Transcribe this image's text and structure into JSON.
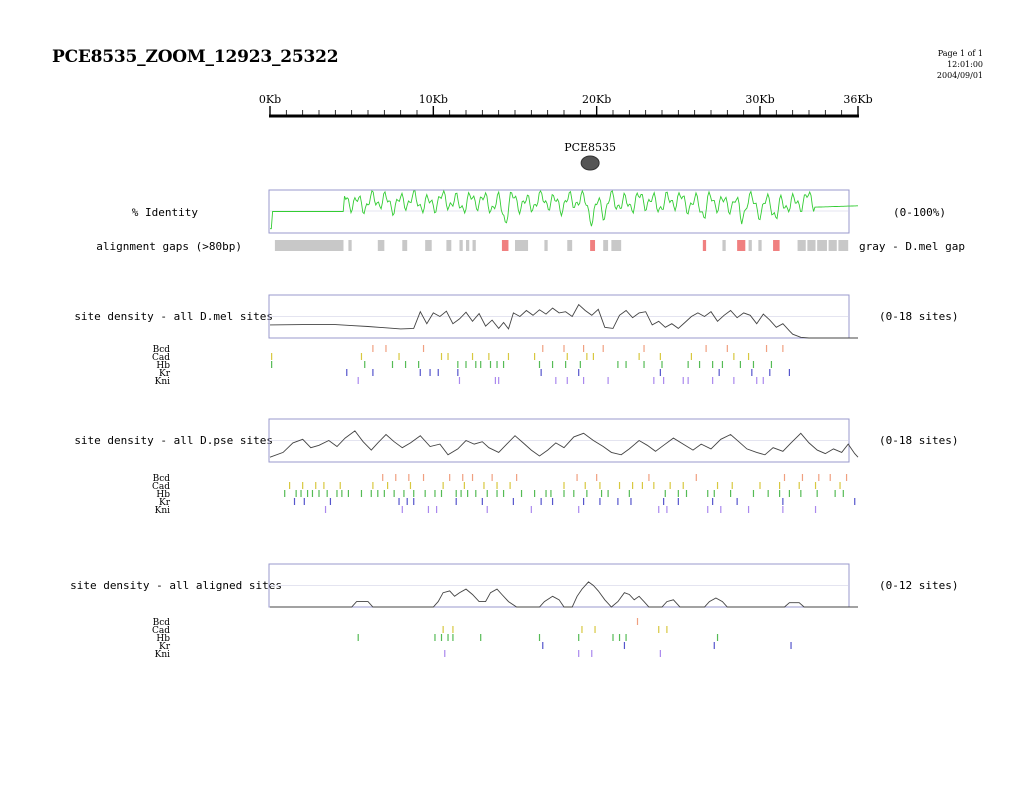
{
  "page": {
    "title": "PCE8535_ZOOM_12923_25322",
    "page_label": "Page 1 of 1",
    "time": "12:01:00",
    "date": "2004/09/01"
  },
  "ruler": {
    "labels": [
      "0Kb",
      "10Kb",
      "20Kb",
      "30Kb",
      "36Kb"
    ],
    "positions_kb": [
      0,
      10,
      20,
      30,
      36
    ],
    "minor_tick_kb": 1,
    "max_kb": 36
  },
  "element": {
    "label": "PCE8535",
    "position_kb": 19.6,
    "color": "#555555"
  },
  "identity": {
    "label": "% Identity",
    "range_label": "(0-100%)",
    "line_color": "#33cc33"
  },
  "gaps": {
    "label": "alignment gaps (>80bp)",
    "note": "gray - D.mel gap",
    "colors": {
      "dmel": "#c8c8c8",
      "dpse": "#f08080"
    },
    "segments": [
      {
        "start": 0.3,
        "end": 4.5,
        "type": "dmel"
      },
      {
        "start": 4.8,
        "end": 5.0,
        "type": "dmel"
      },
      {
        "start": 6.6,
        "end": 7.0,
        "type": "dmel"
      },
      {
        "start": 8.1,
        "end": 8.4,
        "type": "dmel"
      },
      {
        "start": 9.5,
        "end": 9.9,
        "type": "dmel"
      },
      {
        "start": 10.8,
        "end": 11.1,
        "type": "dmel"
      },
      {
        "start": 11.6,
        "end": 11.8,
        "type": "dmel"
      },
      {
        "start": 12.0,
        "end": 12.2,
        "type": "dmel"
      },
      {
        "start": 12.4,
        "end": 12.6,
        "type": "dmel"
      },
      {
        "start": 14.2,
        "end": 14.6,
        "type": "dpse"
      },
      {
        "start": 15.0,
        "end": 15.8,
        "type": "dmel"
      },
      {
        "start": 16.8,
        "end": 17.0,
        "type": "dmel"
      },
      {
        "start": 18.2,
        "end": 18.5,
        "type": "dmel"
      },
      {
        "start": 19.6,
        "end": 19.9,
        "type": "dpse"
      },
      {
        "start": 20.4,
        "end": 20.7,
        "type": "dmel"
      },
      {
        "start": 20.9,
        "end": 21.5,
        "type": "dmel"
      },
      {
        "start": 26.5,
        "end": 26.7,
        "type": "dpse"
      },
      {
        "start": 27.7,
        "end": 27.9,
        "type": "dmel"
      },
      {
        "start": 28.6,
        "end": 29.1,
        "type": "dpse"
      },
      {
        "start": 29.3,
        "end": 29.5,
        "type": "dmel"
      },
      {
        "start": 29.9,
        "end": 30.1,
        "type": "dmel"
      },
      {
        "start": 30.8,
        "end": 31.2,
        "type": "dpse"
      },
      {
        "start": 32.3,
        "end": 32.8,
        "type": "dmel"
      },
      {
        "start": 32.9,
        "end": 33.4,
        "type": "dmel"
      },
      {
        "start": 33.5,
        "end": 34.1,
        "type": "dmel"
      },
      {
        "start": 34.2,
        "end": 34.7,
        "type": "dmel"
      },
      {
        "start": 34.8,
        "end": 35.4,
        "type": "dmel"
      }
    ]
  },
  "factors": {
    "names": [
      "Bcd",
      "Cad",
      "Hb",
      "Kr",
      "Kni"
    ],
    "colors": [
      "#f0a080",
      "#d8c840",
      "#55bb55",
      "#5555cc",
      "#aa88ee"
    ]
  },
  "panels": [
    {
      "label": "site density - all D.mel sites",
      "range_label": "(0-18 sites)",
      "max_sites": 18,
      "line_color": "#444444",
      "density": [
        [
          0,
          5.5
        ],
        [
          2,
          5.6
        ],
        [
          4,
          5.6
        ],
        [
          5,
          5.2
        ],
        [
          6,
          4.8
        ],
        [
          7,
          4.3
        ],
        [
          8,
          3.8
        ],
        [
          9,
          3.6
        ],
        [
          10,
          3.3
        ],
        [
          11,
          3.5
        ],
        [
          12,
          3.0
        ],
        [
          13,
          2.6
        ],
        [
          14,
          3.0
        ],
        [
          15,
          3.8
        ],
        [
          16,
          3.4
        ],
        [
          17,
          2.8
        ],
        [
          18,
          3.0
        ],
        [
          18.6,
          3.8
        ],
        [
          19.2,
          7.5
        ],
        [
          19.8,
          9.0
        ],
        [
          20.3,
          5.0
        ],
        [
          20.8,
          3.2
        ],
        [
          21.3,
          2.2
        ],
        [
          21.8,
          3.0
        ],
        [
          22.5,
          3.6
        ],
        [
          23.5,
          3.2
        ],
        [
          24.5,
          2.4
        ],
        [
          25.5,
          1.8
        ],
        [
          26.5,
          2.6
        ],
        [
          27.0,
          4.2
        ],
        [
          27.6,
          6.0
        ],
        [
          28.2,
          4.8
        ],
        [
          28.8,
          3.8
        ],
        [
          29.5,
          5.6
        ],
        [
          30.0,
          4.6
        ],
        [
          30.6,
          4.2
        ],
        [
          31.3,
          3.2
        ],
        [
          32,
          1.6
        ],
        [
          32.5,
          0.3
        ],
        [
          33,
          0
        ],
        [
          34,
          0
        ],
        [
          35,
          0
        ],
        [
          36,
          0
        ]
      ],
      "density_detail": [
        [
          8.8,
          4.0
        ],
        [
          9.2,
          11.0
        ],
        [
          9.6,
          6.0
        ],
        [
          10.0,
          10.5
        ],
        [
          10.4,
          9.0
        ],
        [
          10.8,
          11.2
        ],
        [
          11.2,
          6.0
        ],
        [
          11.6,
          8.0
        ],
        [
          12.0,
          10.8
        ],
        [
          12.4,
          7.0
        ],
        [
          12.8,
          10.2
        ],
        [
          13.2,
          5.0
        ],
        [
          13.6,
          7.5
        ],
        [
          14.0,
          4.0
        ],
        [
          14.3,
          6.5
        ],
        [
          14.6,
          3.8
        ],
        [
          14.9,
          10.5
        ],
        [
          15.3,
          9.0
        ],
        [
          15.7,
          11.5
        ],
        [
          16.1,
          9.5
        ],
        [
          16.5,
          11.8
        ],
        [
          16.9,
          10.0
        ],
        [
          17.3,
          12.5
        ],
        [
          17.7,
          10.5
        ],
        [
          18.1,
          11.0
        ],
        [
          18.5,
          9.0
        ],
        [
          18.9,
          14.0
        ],
        [
          19.3,
          11.5
        ],
        [
          19.7,
          9.5
        ],
        [
          20.1,
          12.0
        ],
        [
          20.5,
          4.5
        ],
        [
          21.0,
          4.0
        ],
        [
          21.4,
          9.5
        ],
        [
          21.8,
          11.5
        ],
        [
          22.2,
          8.5
        ],
        [
          22.6,
          10.5
        ],
        [
          23.0,
          11.0
        ],
        [
          23.4,
          5.5
        ],
        [
          23.8,
          7.0
        ],
        [
          24.2,
          4.5
        ],
        [
          24.6,
          6.0
        ],
        [
          25.0,
          4.0
        ],
        [
          25.4,
          6.5
        ],
        [
          25.8,
          9.0
        ],
        [
          26.2,
          10.5
        ],
        [
          26.6,
          9.0
        ],
        [
          27.0,
          11.0
        ],
        [
          27.4,
          7.0
        ],
        [
          27.8,
          9.5
        ],
        [
          28.2,
          11.5
        ],
        [
          28.6,
          8.5
        ],
        [
          29.0,
          10.5
        ],
        [
          29.4,
          9.5
        ],
        [
          29.8,
          6.0
        ],
        [
          30.2,
          10.0
        ],
        [
          30.6,
          7.5
        ],
        [
          31.0,
          4.5
        ],
        [
          31.4,
          6.0
        ],
        [
          31.8,
          3.0
        ]
      ],
      "tracks": [
        [
          6.3,
          7.1,
          9.4,
          16.7,
          18.0,
          19.2,
          20.4,
          22.9,
          26.7,
          28.0,
          30.4,
          31.4
        ],
        [
          0.1,
          5.6,
          7.9,
          10.5,
          10.9,
          12.4,
          13.4,
          14.6,
          16.2,
          18.2,
          19.4,
          19.8,
          22.6,
          23.9,
          25.8,
          28.4,
          29.3
        ],
        [
          0.1,
          5.8,
          7.5,
          8.3,
          9.1,
          11.5,
          12.0,
          12.6,
          12.9,
          13.5,
          13.9,
          14.3,
          16.5,
          17.3,
          18.1,
          19.0,
          21.3,
          21.8,
          22.9,
          24.0,
          25.6,
          26.3,
          27.1,
          27.7,
          28.8,
          29.6,
          30.7
        ],
        [
          4.7,
          6.3,
          9.2,
          9.8,
          10.3,
          11.5,
          16.6,
          18.9,
          23.9,
          27.5,
          29.5,
          30.6,
          31.8
        ],
        [
          5.4,
          11.6,
          13.8,
          14.0,
          17.5,
          18.2,
          19.2,
          20.7,
          23.5,
          24.1,
          25.3,
          25.6,
          27.1,
          28.4,
          29.8,
          30.2
        ]
      ]
    },
    {
      "label": "site density - all D.pse sites",
      "range_label": "(0-18 sites)",
      "max_sites": 18,
      "line_color": "#444444",
      "density": [
        [
          0,
          2.0
        ],
        [
          0.8,
          4.0
        ],
        [
          1.4,
          8.0
        ],
        [
          2.0,
          9.5
        ],
        [
          2.5,
          6.0
        ],
        [
          3.0,
          7.0
        ],
        [
          3.6,
          9.0
        ],
        [
          4.1,
          6.5
        ],
        [
          4.6,
          10.0
        ],
        [
          5.2,
          13.0
        ],
        [
          5.7,
          8.5
        ],
        [
          6.2,
          5.0
        ],
        [
          6.6,
          8.0
        ],
        [
          7.1,
          11.5
        ],
        [
          7.6,
          8.5
        ],
        [
          8.1,
          6.0
        ],
        [
          8.6,
          8.0
        ],
        [
          9.2,
          11.0
        ],
        [
          9.8,
          6.5
        ],
        [
          10.4,
          7.5
        ],
        [
          10.9,
          3.0
        ],
        [
          11.5,
          5.5
        ],
        [
          12.0,
          9.0
        ],
        [
          12.5,
          7.5
        ],
        [
          13.0,
          8.5
        ],
        [
          13.4,
          6.0
        ],
        [
          14.0,
          4.0
        ],
        [
          14.5,
          7.5
        ],
        [
          15.0,
          11.0
        ],
        [
          15.5,
          8.0
        ],
        [
          16.0,
          5.0
        ],
        [
          16.5,
          2.5
        ],
        [
          17.0,
          5.0
        ],
        [
          17.5,
          8.0
        ],
        [
          18.0,
          6.0
        ],
        [
          18.6,
          10.5
        ],
        [
          19.2,
          12.0
        ],
        [
          19.8,
          9.0
        ],
        [
          20.4,
          6.5
        ],
        [
          20.9,
          4.0
        ],
        [
          21.5,
          3.0
        ],
        [
          22.0,
          5.5
        ],
        [
          22.6,
          9.0
        ],
        [
          23.1,
          7.0
        ],
        [
          23.6,
          4.5
        ],
        [
          24.1,
          7.0
        ],
        [
          24.7,
          10.0
        ],
        [
          25.3,
          7.5
        ],
        [
          25.9,
          5.0
        ],
        [
          26.4,
          7.5
        ],
        [
          27.0,
          5.5
        ],
        [
          27.6,
          9.5
        ],
        [
          28.2,
          11.5
        ],
        [
          28.7,
          8.5
        ],
        [
          29.2,
          5.5
        ],
        [
          29.8,
          4.0
        ],
        [
          30.3,
          3.0
        ],
        [
          30.8,
          6.0
        ],
        [
          31.4,
          4.5
        ],
        [
          31.9,
          8.0
        ],
        [
          32.5,
          12.0
        ],
        [
          33.0,
          8.0
        ],
        [
          33.5,
          5.0
        ],
        [
          34.0,
          3.5
        ],
        [
          34.5,
          5.5
        ],
        [
          35.0,
          4.0
        ],
        [
          35.4,
          7.5
        ],
        [
          35.8,
          3.5
        ],
        [
          36,
          2.0
        ]
      ],
      "density_detail": [],
      "tracks": [
        [
          6.9,
          7.7,
          8.5,
          9.4,
          11.0,
          11.8,
          12.4,
          13.6,
          15.1,
          18.8,
          20.0,
          23.2,
          26.1,
          31.5,
          32.6,
          33.6,
          34.3,
          35.3
        ],
        [
          1.2,
          2.0,
          2.8,
          3.3,
          4.3,
          6.3,
          7.2,
          8.6,
          10.6,
          11.9,
          13.1,
          13.9,
          14.7,
          18.0,
          19.3,
          20.2,
          21.4,
          22.2,
          22.8,
          23.5,
          24.5,
          25.3,
          27.4,
          28.3,
          30.0,
          31.2,
          32.4,
          33.4,
          34.9
        ],
        [
          0.9,
          1.6,
          1.9,
          2.3,
          2.6,
          3.0,
          3.5,
          4.1,
          4.4,
          4.8,
          5.6,
          6.2,
          6.6,
          7.0,
          7.6,
          8.2,
          8.8,
          9.5,
          10.1,
          10.5,
          11.4,
          11.7,
          12.1,
          12.6,
          13.3,
          13.9,
          14.3,
          15.4,
          16.2,
          16.9,
          17.2,
          18.0,
          18.6,
          19.4,
          20.3,
          20.7,
          22.0,
          24.2,
          25.0,
          25.5,
          26.8,
          27.2,
          28.2,
          29.6,
          30.5,
          31.2,
          31.8,
          32.5,
          33.5,
          34.6,
          35.1
        ],
        [
          1.5,
          2.1,
          3.7,
          7.9,
          8.4,
          8.8,
          11.4,
          13.0,
          14.9,
          16.6,
          17.3,
          19.2,
          20.2,
          21.3,
          22.1,
          24.1,
          25.0,
          27.1,
          28.6,
          31.4,
          35.8
        ],
        [
          3.4,
          8.1,
          9.7,
          10.2,
          13.3,
          16.0,
          18.9,
          23.8,
          24.3,
          26.8,
          27.6,
          29.3,
          31.4,
          33.4
        ]
      ]
    },
    {
      "label": "site density - all aligned sites",
      "range_label": "(0-12 sites)",
      "max_sites": 12,
      "line_color": "#444444",
      "density": [
        [
          0,
          0
        ],
        [
          5.0,
          0
        ],
        [
          5.3,
          1.5
        ],
        [
          6.0,
          1.5
        ],
        [
          6.3,
          0
        ],
        [
          10.0,
          0
        ],
        [
          10.3,
          1.5
        ],
        [
          10.6,
          4.0
        ],
        [
          11.0,
          4.5
        ],
        [
          11.3,
          3.0
        ],
        [
          11.6,
          4.0
        ],
        [
          12.0,
          5.0
        ],
        [
          12.4,
          3.5
        ],
        [
          12.8,
          1.5
        ],
        [
          13.2,
          1.5
        ],
        [
          13.5,
          4.0
        ],
        [
          13.9,
          5.0
        ],
        [
          14.2,
          3.5
        ],
        [
          14.6,
          1.5
        ],
        [
          15.1,
          0
        ],
        [
          16.5,
          0
        ],
        [
          16.8,
          1.5
        ],
        [
          17.3,
          3.0
        ],
        [
          17.7,
          2.0
        ],
        [
          18.0,
          0
        ],
        [
          18.5,
          0
        ],
        [
          18.8,
          3.0
        ],
        [
          19.1,
          5.0
        ],
        [
          19.5,
          7.0
        ],
        [
          19.8,
          6.0
        ],
        [
          20.1,
          4.5
        ],
        [
          20.5,
          2.0
        ],
        [
          20.9,
          0
        ],
        [
          21.3,
          1.5
        ],
        [
          21.7,
          4.0
        ],
        [
          22.0,
          3.5
        ],
        [
          22.3,
          2.0
        ],
        [
          22.6,
          3.0
        ],
        [
          22.9,
          1.5
        ],
        [
          23.2,
          0
        ],
        [
          24.0,
          0
        ],
        [
          24.3,
          1.5
        ],
        [
          24.7,
          2.0
        ],
        [
          25.1,
          0
        ],
        [
          26.6,
          0
        ],
        [
          26.9,
          1.5
        ],
        [
          27.3,
          2.5
        ],
        [
          27.7,
          1.5
        ],
        [
          28.0,
          0
        ],
        [
          31.5,
          0
        ],
        [
          31.8,
          1.2
        ],
        [
          32.4,
          1.2
        ],
        [
          32.7,
          0
        ],
        [
          36,
          0
        ]
      ],
      "density_detail": [],
      "tracks": [
        [
          22.5
        ],
        [
          10.6,
          11.2,
          19.1,
          19.9,
          23.8,
          24.3
        ],
        [
          5.4,
          10.1,
          10.5,
          10.9,
          11.2,
          12.9,
          16.5,
          18.9,
          21.0,
          21.4,
          21.8,
          27.4
        ],
        [
          16.7,
          21.7,
          27.2,
          31.9
        ],
        [
          10.7,
          18.9,
          19.7,
          23.9
        ]
      ]
    }
  ]
}
